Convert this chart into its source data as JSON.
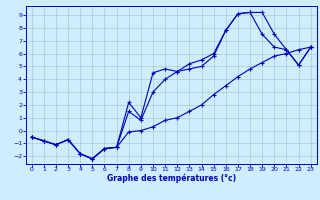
{
  "title": "Graphe des températures (°c)",
  "background_color": "#cceeff",
  "grid_color": "#aacccc",
  "line_color": "#0000bb",
  "spine_color": "#0000bb",
  "xlabel_color": "#0000bb",
  "xlim": [
    -0.5,
    23.5
  ],
  "ylim": [
    -2.6,
    9.7
  ],
  "xticks": [
    0,
    1,
    2,
    3,
    4,
    5,
    6,
    7,
    8,
    9,
    10,
    11,
    12,
    13,
    14,
    15,
    16,
    17,
    18,
    19,
    20,
    21,
    22,
    23
  ],
  "yticks": [
    -2,
    -1,
    0,
    1,
    2,
    3,
    4,
    5,
    6,
    7,
    8,
    9
  ],
  "s1_x": [
    0,
    1,
    2,
    3,
    4,
    5,
    6,
    7,
    8,
    9,
    10,
    11,
    12,
    13,
    14,
    15,
    16,
    17,
    18,
    19,
    20,
    21,
    22,
    23
  ],
  "s1_y": [
    -0.5,
    -0.8,
    -1.1,
    -0.7,
    -1.8,
    -2.2,
    -1.4,
    -1.3,
    -0.1,
    0.0,
    0.3,
    0.8,
    1.0,
    1.5,
    2.0,
    2.8,
    3.5,
    4.2,
    4.8,
    5.3,
    5.8,
    6.0,
    6.3,
    6.5
  ],
  "s2_x": [
    0,
    1,
    2,
    3,
    4,
    5,
    6,
    7,
    8,
    9,
    10,
    11,
    12,
    13,
    14,
    15,
    16,
    17,
    18,
    19,
    20,
    21,
    22,
    23
  ],
  "s2_y": [
    -0.5,
    -0.8,
    -1.1,
    -0.7,
    -1.8,
    -2.2,
    -1.4,
    -1.3,
    2.2,
    1.0,
    4.5,
    4.8,
    4.6,
    5.2,
    5.5,
    6.0,
    7.8,
    9.1,
    9.2,
    7.5,
    6.5,
    6.3,
    5.1,
    6.5
  ],
  "s3_x": [
    0,
    1,
    2,
    3,
    4,
    5,
    6,
    7,
    8,
    9,
    10,
    11,
    12,
    13,
    14,
    15,
    16,
    17,
    18,
    19,
    20,
    21,
    22,
    23
  ],
  "s3_y": [
    -0.5,
    -0.8,
    -1.1,
    -0.7,
    -1.8,
    -2.2,
    -1.4,
    -1.3,
    1.5,
    0.8,
    3.0,
    4.0,
    4.6,
    4.8,
    5.0,
    5.8,
    7.8,
    9.1,
    9.2,
    9.2,
    7.5,
    6.3,
    5.1,
    6.5
  ],
  "tick_labelsize": 4.5,
  "xlabel_fontsize": 5.5,
  "xlabel_bold": true
}
